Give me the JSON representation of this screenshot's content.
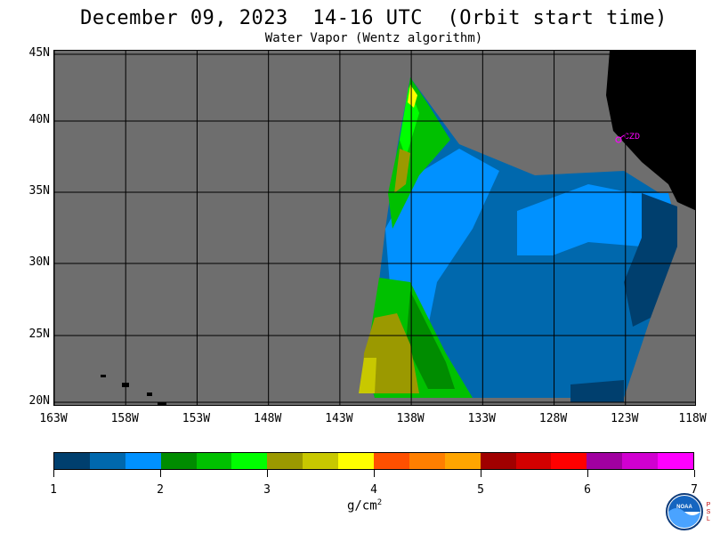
{
  "title": "December 09, 2023  14-16 UTC  (Orbit start time)",
  "subtitle": "Water Vapor (Wentz algorithm)",
  "map": {
    "latitude_labels": [
      "45N",
      "40N",
      "35N",
      "30N",
      "25N",
      "20N"
    ],
    "longitude_labels": [
      "163W",
      "158W",
      "153W",
      "148W",
      "143W",
      "138W",
      "133W",
      "128W",
      "123W",
      "118W"
    ],
    "station_label": "CZD",
    "colors": {
      "no_data": "#6e6e6e",
      "land": "#000000",
      "grid": "#000000",
      "station": "#ff00ff"
    }
  },
  "colorbar": {
    "tick_labels": [
      "1",
      "2",
      "3",
      "4",
      "5",
      "6",
      "7"
    ],
    "units_base": "g/cm",
    "units_exp": "2",
    "colors": [
      "#003f6e",
      "#0068ad",
      "#0091ff",
      "#008c00",
      "#00c000",
      "#00ff00",
      "#9b9900",
      "#c8c800",
      "#ffff00",
      "#ff5000",
      "#ff7f00",
      "#ffa500",
      "#a00000",
      "#d20000",
      "#ff0000",
      "#a000a0",
      "#d000d0",
      "#ff00ff"
    ]
  },
  "logo": {
    "icon": "noaa-logo",
    "text": "NOAA",
    "side_text": "PSL"
  }
}
